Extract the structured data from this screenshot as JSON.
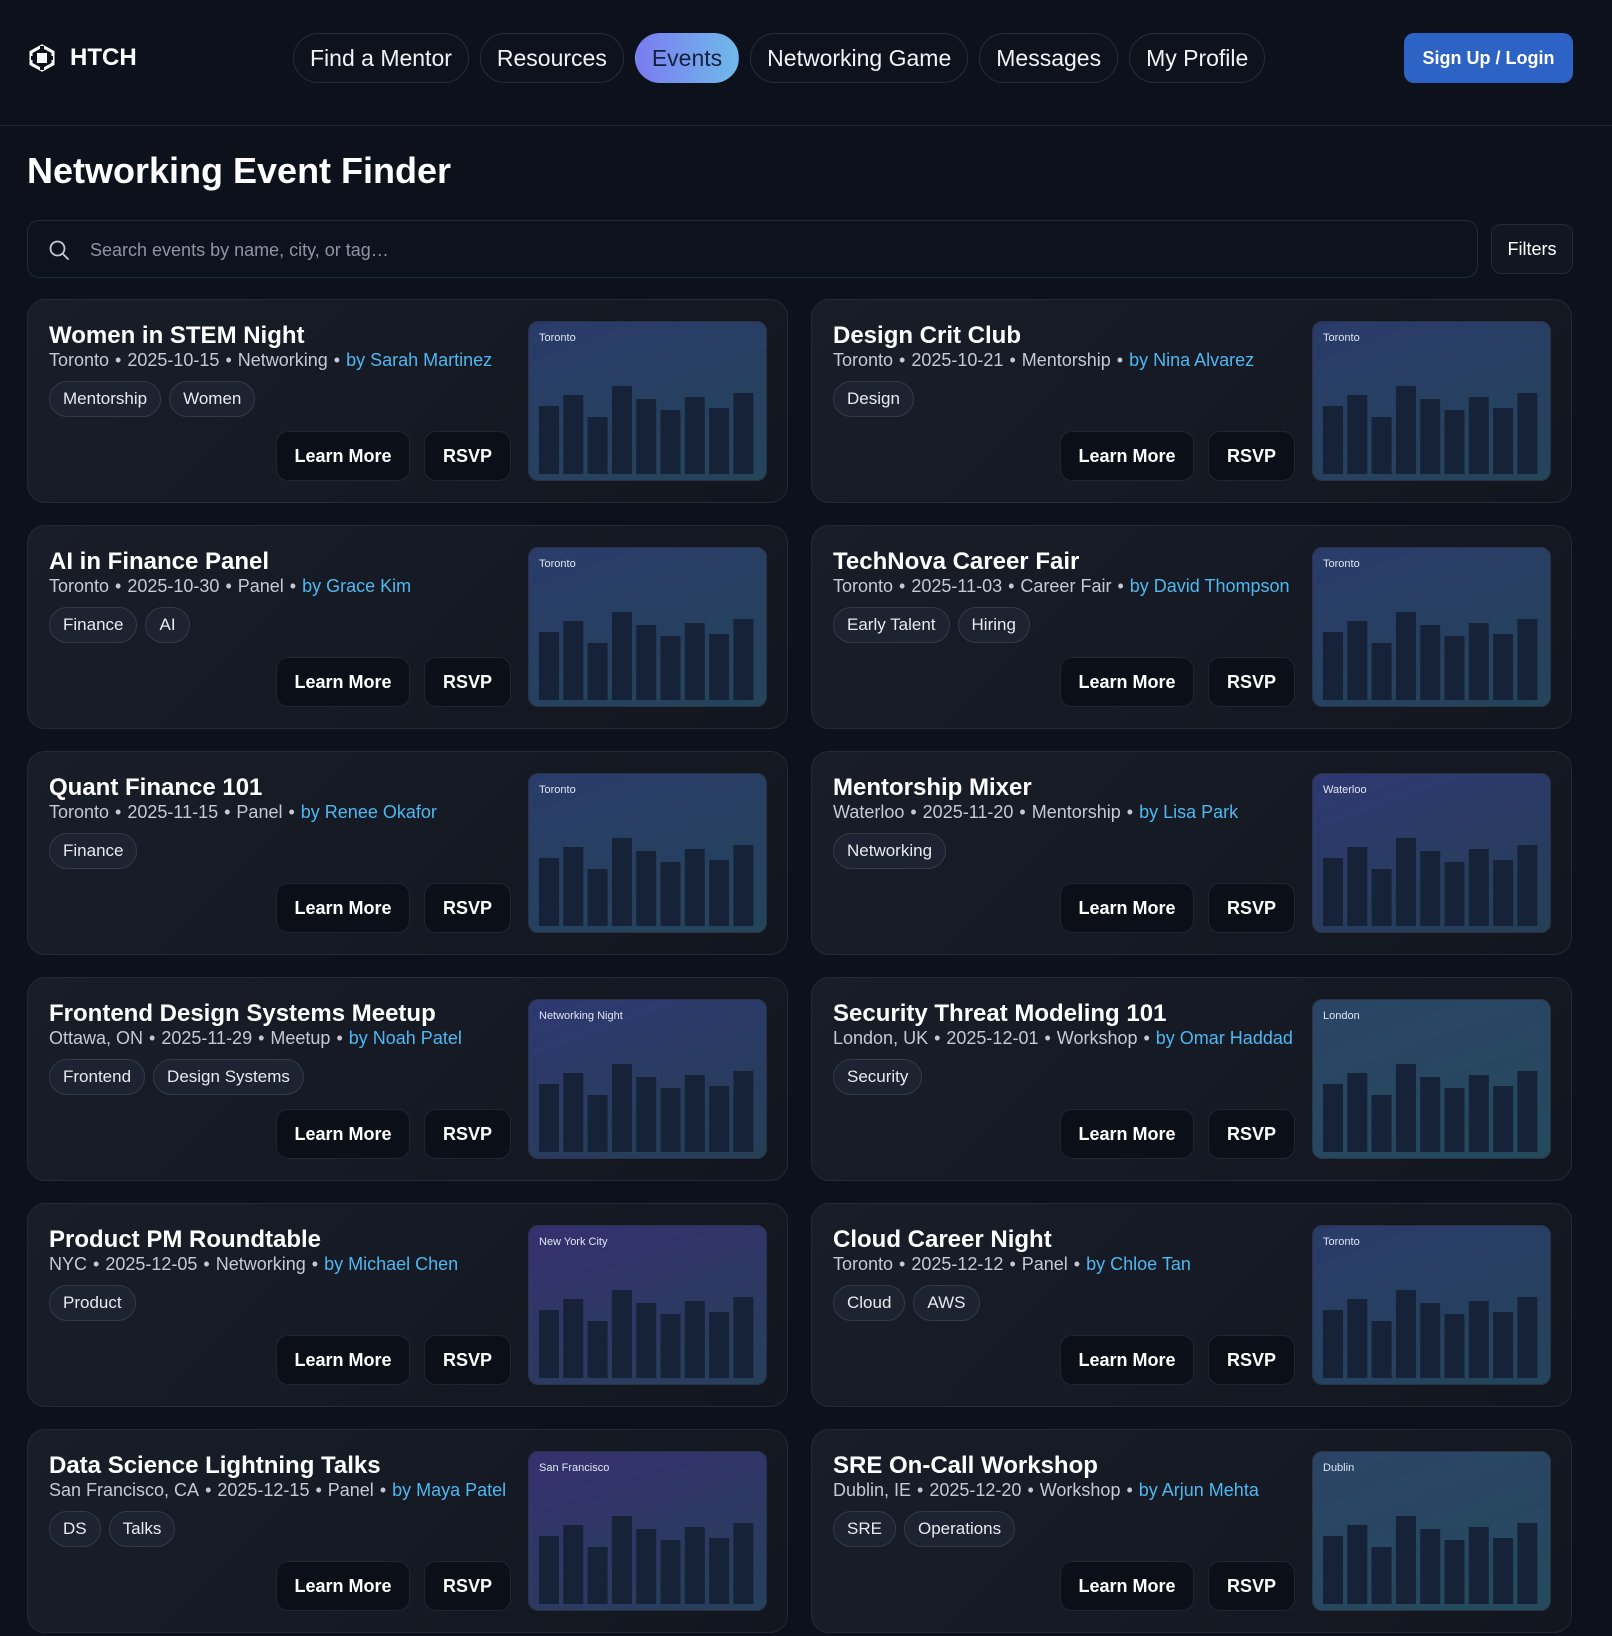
{
  "brand": {
    "name": "HTCH",
    "icon": "hexagon-logo-icon"
  },
  "nav": {
    "items": [
      {
        "label": "Find a Mentor",
        "active": false
      },
      {
        "label": "Resources",
        "active": false
      },
      {
        "label": "Events",
        "active": true
      },
      {
        "label": "Networking Game",
        "active": false
      },
      {
        "label": "Messages",
        "active": false
      },
      {
        "label": "My Profile",
        "active": false
      }
    ],
    "signup_label": "Sign Up / Login"
  },
  "page": {
    "title": "Networking Event Finder"
  },
  "search": {
    "placeholder": "Search events by name, city, or tag…",
    "value": "",
    "filters_label": "Filters"
  },
  "card_actions": {
    "learn_more": "Learn More",
    "rsvp": "RSVP"
  },
  "colors": {
    "accent": "#4fb8f0",
    "primary": "#2d63c4",
    "background": "#0c111b"
  },
  "events": [
    {
      "title": "Women in STEM Night",
      "city": "Toronto",
      "date": "2025-10-15",
      "type": "Networking",
      "organizer": "by Sarah Martinez",
      "tags": [
        "Mentorship",
        "Women"
      ],
      "thumb_label": "Toronto",
      "thumb_tint": "teal"
    },
    {
      "title": "Design Crit Club",
      "city": "Toronto",
      "date": "2025-10-21",
      "type": "Mentorship",
      "organizer": "by Nina Alvarez",
      "tags": [
        "Design"
      ],
      "thumb_label": "Toronto",
      "thumb_tint": "teal"
    },
    {
      "title": "AI in Finance Panel",
      "city": "Toronto",
      "date": "2025-10-30",
      "type": "Panel",
      "organizer": "by Grace Kim",
      "tags": [
        "Finance",
        "AI"
      ],
      "thumb_label": "Toronto",
      "thumb_tint": "teal"
    },
    {
      "title": "TechNova Career Fair",
      "city": "Toronto",
      "date": "2025-11-03",
      "type": "Career Fair",
      "organizer": "by David Thompson",
      "tags": [
        "Early Talent",
        "Hiring"
      ],
      "thumb_label": "Toronto",
      "thumb_tint": "teal"
    },
    {
      "title": "Quant Finance 101",
      "city": "Toronto",
      "date": "2025-11-15",
      "type": "Panel",
      "organizer": "by Renee Okafor",
      "tags": [
        "Finance"
      ],
      "thumb_label": "Toronto",
      "thumb_tint": "teal"
    },
    {
      "title": "Mentorship Mixer",
      "city": "Waterloo",
      "date": "2025-11-20",
      "type": "Mentorship",
      "organizer": "by Lisa Park",
      "tags": [
        "Networking"
      ],
      "thumb_label": "Waterloo",
      "thumb_tint": "indigo"
    },
    {
      "title": "Frontend Design Systems Meetup",
      "city": "Ottawa, ON",
      "date": "2025-11-29",
      "type": "Meetup",
      "organizer": "by Noah Patel",
      "tags": [
        "Frontend",
        "Design Systems"
      ],
      "thumb_label": "Networking Night",
      "thumb_tint": "indigo"
    },
    {
      "title": "Security Threat Modeling 101",
      "city": "London, UK",
      "date": "2025-12-01",
      "type": "Workshop",
      "organizer": "by Omar Haddad",
      "tags": [
        "Security"
      ],
      "thumb_label": "London",
      "thumb_tint": "slate"
    },
    {
      "title": "Product PM Roundtable",
      "city": "NYC",
      "date": "2025-12-05",
      "type": "Networking",
      "organizer": "by Michael Chen",
      "tags": [
        "Product"
      ],
      "thumb_label": "New York City",
      "thumb_tint": "violet"
    },
    {
      "title": "Cloud Career Night",
      "city": "Toronto",
      "date": "2025-12-12",
      "type": "Panel",
      "organizer": "by Chloe Tan",
      "tags": [
        "Cloud",
        "AWS"
      ],
      "thumb_label": "Toronto",
      "thumb_tint": "teal"
    },
    {
      "title": "Data Science Lightning Talks",
      "city": "San Francisco, CA",
      "date": "2025-12-15",
      "type": "Panel",
      "organizer": "by Maya Patel",
      "tags": [
        "DS",
        "Talks"
      ],
      "thumb_label": "San Francisco",
      "thumb_tint": "violet"
    },
    {
      "title": "SRE On-Call Workshop",
      "city": "Dublin, IE",
      "date": "2025-12-20",
      "type": "Workshop",
      "organizer": "by Arjun Mehta",
      "tags": [
        "SRE",
        "Operations"
      ],
      "thumb_label": "Dublin",
      "thumb_tint": "slate"
    }
  ]
}
